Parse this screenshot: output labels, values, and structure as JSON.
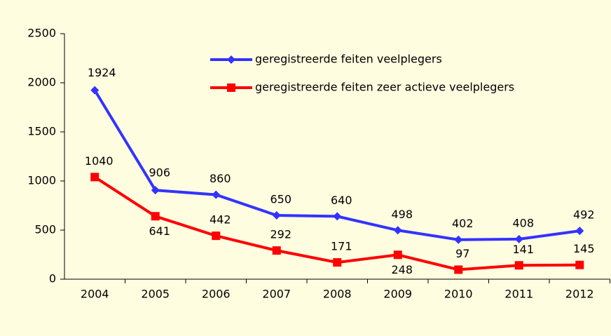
{
  "chart_data": {
    "type": "line",
    "categories": [
      "2004",
      "2005",
      "2006",
      "2007",
      "2008",
      "2009",
      "2010",
      "2011",
      "2012"
    ],
    "series": [
      {
        "name": "geregistreerde feiten veelplegers",
        "color": "#3333ff",
        "values": [
          1924,
          906,
          860,
          650,
          640,
          498,
          402,
          408,
          492
        ]
      },
      {
        "name": "geregistreerde feiten zeer actieve veelplegers",
        "color": "#ff0000",
        "values": [
          1040,
          641,
          442,
          292,
          171,
          248,
          97,
          141,
          145
        ]
      }
    ],
    "ylim": [
      0,
      2500
    ],
    "yticks": [
      0,
      500,
      1000,
      1500,
      2000,
      2500
    ],
    "grid": false,
    "legend": "top-right"
  }
}
